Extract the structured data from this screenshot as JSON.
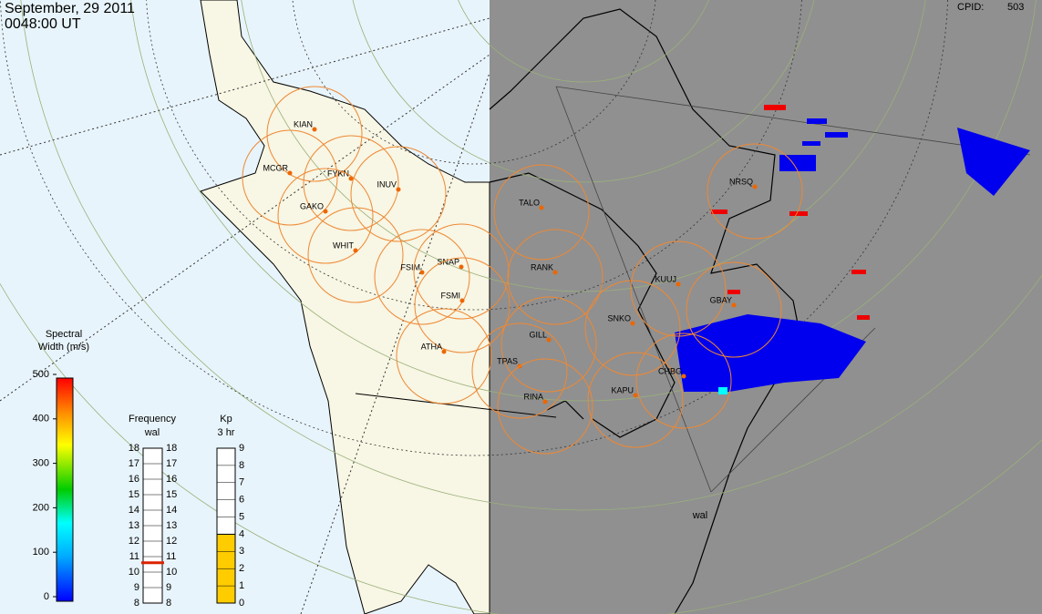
{
  "header": {
    "date": "September, 29 2011",
    "time": "0048:00 UT",
    "cpid_label": "CPID:",
    "cpid": "503"
  },
  "stations": [
    "KIAN",
    "MCGR",
    "FYKN",
    "INUV",
    "GAKO",
    "WHIT",
    "FSIM",
    "SNAP",
    "FSMI",
    "ATHA",
    "TALO",
    "RANK",
    "GILL",
    "TPAS",
    "RINA",
    "KAPU",
    "SNKO",
    "KUUJ",
    "GBAY",
    "CHBG",
    "NRSQ"
  ],
  "radar": "wal",
  "spectral_width": {
    "title": [
      "Spectral",
      "Width (m/s)"
    ],
    "ticks": [
      0,
      100,
      200,
      300,
      400,
      500
    ]
  },
  "frequency": {
    "title": [
      "Frequency",
      "wal"
    ],
    "ticks": [
      8,
      9,
      10,
      11,
      12,
      13,
      14,
      15,
      16,
      17,
      18
    ],
    "value": 10.6
  },
  "kp": {
    "title": [
      "Kp",
      "3 hr"
    ],
    "ticks": [
      0,
      1,
      2,
      3,
      4,
      5,
      6,
      7,
      8,
      9
    ],
    "value": 4
  }
}
